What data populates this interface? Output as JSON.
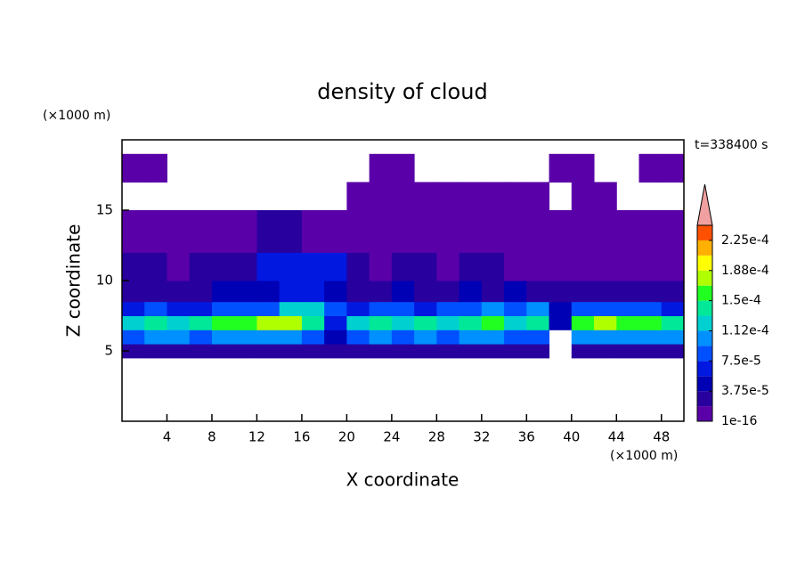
{
  "chart_data": {
    "type": "contour",
    "title": "density of cloud",
    "x_label": "X coordinate",
    "y_label": "Z coordinate",
    "x_unit": "(×1000 m)",
    "y_unit": "(×1000 m)",
    "time_label": "t=338400 s",
    "xlim": [
      0,
      50
    ],
    "ylim": [
      0,
      20
    ],
    "xticks": [
      4,
      8,
      12,
      16,
      20,
      24,
      28,
      32,
      36,
      40,
      44,
      48
    ],
    "yticks": [
      5,
      10,
      15
    ],
    "x": [
      0,
      2,
      4,
      6,
      8,
      10,
      12,
      14,
      16,
      18,
      20,
      22,
      24,
      26,
      28,
      30,
      32,
      34,
      36,
      38,
      40,
      42,
      44,
      46,
      48,
      50
    ],
    "y": [
      4.5,
      5.5,
      6.5,
      7.5,
      8.5,
      10,
      12,
      15,
      17,
      19
    ],
    "z": [
      [
        3e-05,
        3e-05,
        3e-05,
        3e-05,
        3e-05,
        3e-05,
        3e-05,
        3e-05,
        3e-05,
        2e-05,
        3e-05,
        3e-05,
        3e-05,
        3e-05,
        3e-05,
        3e-05,
        3e-05,
        3e-05,
        3e-05,
        null,
        3e-05,
        3e-05,
        3e-05,
        3e-05,
        3e-05
      ],
      [
        9e-05,
        9.5e-05,
        0.0001,
        9e-05,
        0.0001,
        0.00011,
        0.00011,
        0.0001,
        9e-05,
        5e-05,
        9e-05,
        0.0001,
        9e-05,
        0.0001,
        9e-05,
        9.5e-05,
        0.0001,
        9e-05,
        9e-05,
        null,
        0.0001,
        0.00011,
        0.00011,
        0.0001,
        9.5e-05
      ],
      [
        0.00013,
        0.00014,
        0.00013,
        0.00014,
        0.00015,
        0.00016,
        0.00017,
        0.00017,
        0.00014,
        6e-05,
        0.00013,
        0.00014,
        0.00013,
        0.00014,
        0.00013,
        0.00014,
        0.00015,
        0.00013,
        0.00014,
        5e-05,
        0.00016,
        0.00017,
        0.00016,
        0.00015,
        0.00014
      ],
      [
        7e-05,
        8e-05,
        7e-05,
        7e-05,
        8e-05,
        9e-05,
        9e-05,
        0.00012,
        0.00013,
        8e-05,
        7e-05,
        8e-05,
        9e-05,
        7e-05,
        8e-05,
        9e-05,
        0.0001,
        9e-05,
        0.0001,
        4e-05,
        8e-05,
        9e-05,
        8e-05,
        8e-05,
        7e-05
      ],
      [
        3.5e-05,
        3.5e-05,
        3e-05,
        3.5e-05,
        4e-05,
        4e-05,
        5e-05,
        6e-05,
        7e-05,
        4e-05,
        3.5e-05,
        3e-05,
        4e-05,
        3.5e-05,
        3e-05,
        4e-05,
        3.5e-05,
        4e-05,
        3e-05,
        2e-05,
        3e-05,
        3.5e-05,
        3e-05,
        3.5e-05,
        3e-05
      ],
      [
        2e-05,
        2e-05,
        1.5e-05,
        2e-05,
        2e-05,
        3e-05,
        6e-05,
        6e-05,
        6e-05,
        6e-05,
        2e-05,
        1.5e-05,
        2e-05,
        2e-05,
        1.5e-05,
        2e-05,
        2e-05,
        1.5e-05,
        1e-05,
        1e-05,
        1e-05,
        1.5e-05,
        1e-05,
        1.5e-05,
        1e-05
      ],
      [
        5e-06,
        5e-06,
        5e-06,
        5e-06,
        5e-06,
        1e-05,
        2e-05,
        2e-05,
        1e-05,
        5e-06,
        5e-06,
        5e-06,
        5e-06,
        5e-06,
        5e-06,
        5e-06,
        5e-06,
        5e-06,
        5e-06,
        5e-06,
        5e-06,
        5e-06,
        5e-06,
        5e-06,
        5e-06
      ],
      [
        null,
        null,
        null,
        null,
        null,
        null,
        null,
        null,
        null,
        null,
        1e-06,
        1e-06,
        1e-06,
        1e-06,
        1e-06,
        1e-06,
        1e-06,
        1e-06,
        1e-06,
        null,
        1e-06,
        1e-06,
        null,
        null,
        null
      ],
      [
        1e-06,
        1e-06,
        null,
        null,
        null,
        null,
        null,
        null,
        null,
        null,
        null,
        1e-06,
        1e-06,
        null,
        null,
        null,
        null,
        null,
        null,
        1e-06,
        1e-06,
        null,
        null,
        1e-06,
        1e-06
      ]
    ],
    "levels": [
      1e-16,
      1.875e-05,
      3.75e-05,
      5.625e-05,
      7.5e-05,
      9.375e-05,
      0.0001125,
      0.00013125,
      0.00015,
      0.00016875,
      0.0001875,
      0.00020625,
      0.000225,
      0.00024375
    ],
    "colors": [
      "#5a00a8",
      "#28009e",
      "#0000b4",
      "#0018e0",
      "#0050ff",
      "#0090ff",
      "#00d0d0",
      "#00e898",
      "#20ff20",
      "#b0ff00",
      "#ffff00",
      "#ffb000",
      "#ff5000"
    ],
    "extend_color": "#f0a0a0",
    "colorbar_ticks": [
      1e-16,
      {
        "value": 3.75e-05,
        "label": "3.75e-5"
      },
      {
        "value": 7.5e-05,
        "label": "7.5e-5"
      },
      {
        "value": 0.0001125,
        "label": "1.12e-4"
      },
      {
        "value": 0.00015,
        "label": "1.5e-4"
      },
      {
        "value": 0.0001875,
        "label": "1.88e-4"
      },
      {
        "value": 0.000225,
        "label": "2.25e-4"
      }
    ]
  }
}
